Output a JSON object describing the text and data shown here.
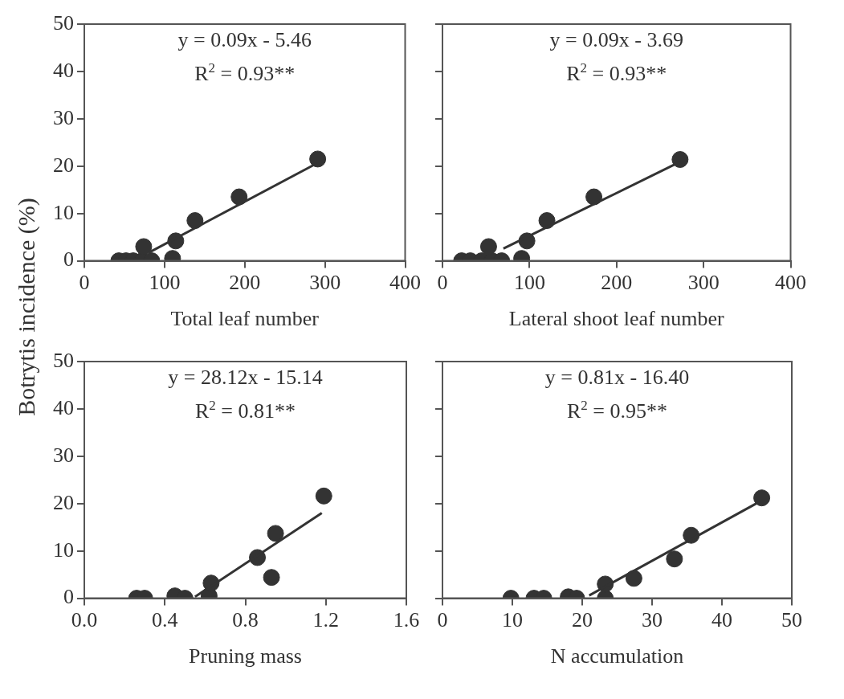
{
  "chart_data": [
    {
      "type": "scatter",
      "xlabel": "Total leaf number",
      "ylabel": "Botrytis incidence (%)",
      "xlim": [
        0,
        400
      ],
      "xticks": [
        0,
        100,
        200,
        300,
        400
      ],
      "ylim": [
        0,
        50
      ],
      "yticks": [
        0,
        10,
        20,
        30,
        40,
        50
      ],
      "grid": false,
      "tick_labels": true,
      "annotations": [
        "y = 0.09x - 5.46",
        "R$^{2}$ = 0.93**"
      ],
      "series": [
        {
          "marker": "circle",
          "color": "#333333",
          "x": [
            43,
            52,
            61,
            72,
            84,
            74,
            110,
            114,
            138,
            193,
            291
          ],
          "values": [
            0,
            0,
            0,
            0,
            0,
            3,
            0.5,
            4.2,
            8.5,
            13.5,
            21.5
          ]
        },
        {
          "type": "line",
          "marker": "none",
          "color": "#333333",
          "x": [
            80,
            290
          ],
          "values": [
            1.7,
            20.6
          ]
        }
      ]
    },
    {
      "type": "scatter",
      "xlabel": "Lateral shoot leaf number",
      "xlim": [
        0,
        400
      ],
      "xticks": [
        0,
        100,
        200,
        300,
        400
      ],
      "ylim": [
        0,
        50
      ],
      "yticks": [
        0,
        10,
        20,
        30,
        40,
        50
      ],
      "grid": false,
      "tick_labels": "x",
      "annotations": [
        "y = 0.09x - 3.69",
        "R$^{2}$ = 0.93**"
      ],
      "series": [
        {
          "marker": "circle",
          "color": "#333333",
          "x": [
            22,
            32,
            45,
            57,
            68,
            53,
            91,
            97,
            120,
            174,
            273
          ],
          "values": [
            0,
            0,
            0,
            0,
            0,
            3,
            0.5,
            4.2,
            8.5,
            13.5,
            21.4
          ]
        },
        {
          "type": "line",
          "marker": "none",
          "color": "#333333",
          "x": [
            70,
            273
          ],
          "values": [
            2.6,
            20.9
          ]
        }
      ]
    },
    {
      "type": "scatter",
      "xlabel": "Pruning mass",
      "xlim": [
        0,
        1.6
      ],
      "xticks": [
        {
          "value": 0,
          "label": "0.0"
        },
        0.4,
        0.8,
        1.2,
        1.6
      ],
      "ylim": [
        0,
        50
      ],
      "yticks": [
        0,
        10,
        20,
        30,
        40,
        50
      ],
      "grid": false,
      "tick_labels": true,
      "annotations": [
        "y = 28.12x - 15.14",
        "R$^{2}$ = 0.81**"
      ],
      "series": [
        {
          "marker": "circle",
          "color": "#333333",
          "x": [
            0.26,
            0.3,
            0.45,
            0.5,
            0.62,
            0.63,
            0.86,
            0.93,
            0.95,
            1.19
          ],
          "values": [
            0,
            0,
            0.5,
            0,
            0.5,
            3.2,
            8.6,
            4.4,
            13.7,
            21.6
          ]
        },
        {
          "type": "line",
          "marker": "none",
          "color": "#333333",
          "x": [
            0.55,
            1.18
          ],
          "values": [
            0.3,
            18
          ]
        }
      ]
    },
    {
      "type": "scatter",
      "xlabel": "N accumulation",
      "xlim": [
        0,
        50
      ],
      "xticks": [
        0,
        10,
        20,
        30,
        40,
        50
      ],
      "ylim": [
        0,
        50
      ],
      "yticks": [
        0,
        10,
        20,
        30,
        40,
        50
      ],
      "grid": false,
      "tick_labels": "x",
      "annotations": [
        "y = 0.81x - 16.40",
        "R$^{2}$ = 0.95**"
      ],
      "series": [
        {
          "marker": "circle",
          "color": "#333333",
          "x": [
            9.8,
            13.1,
            14.5,
            18,
            19.2,
            23.3,
            23.3,
            27.4,
            33.2,
            35.6,
            45.7
          ],
          "values": [
            0,
            0,
            0,
            0.3,
            0,
            0,
            3,
            4.2,
            8.3,
            13.3,
            21.2
          ]
        },
        {
          "type": "line",
          "marker": "none",
          "color": "#333333",
          "x": [
            21,
            45.5
          ],
          "values": [
            0.6,
            20.5
          ]
        }
      ]
    }
  ]
}
